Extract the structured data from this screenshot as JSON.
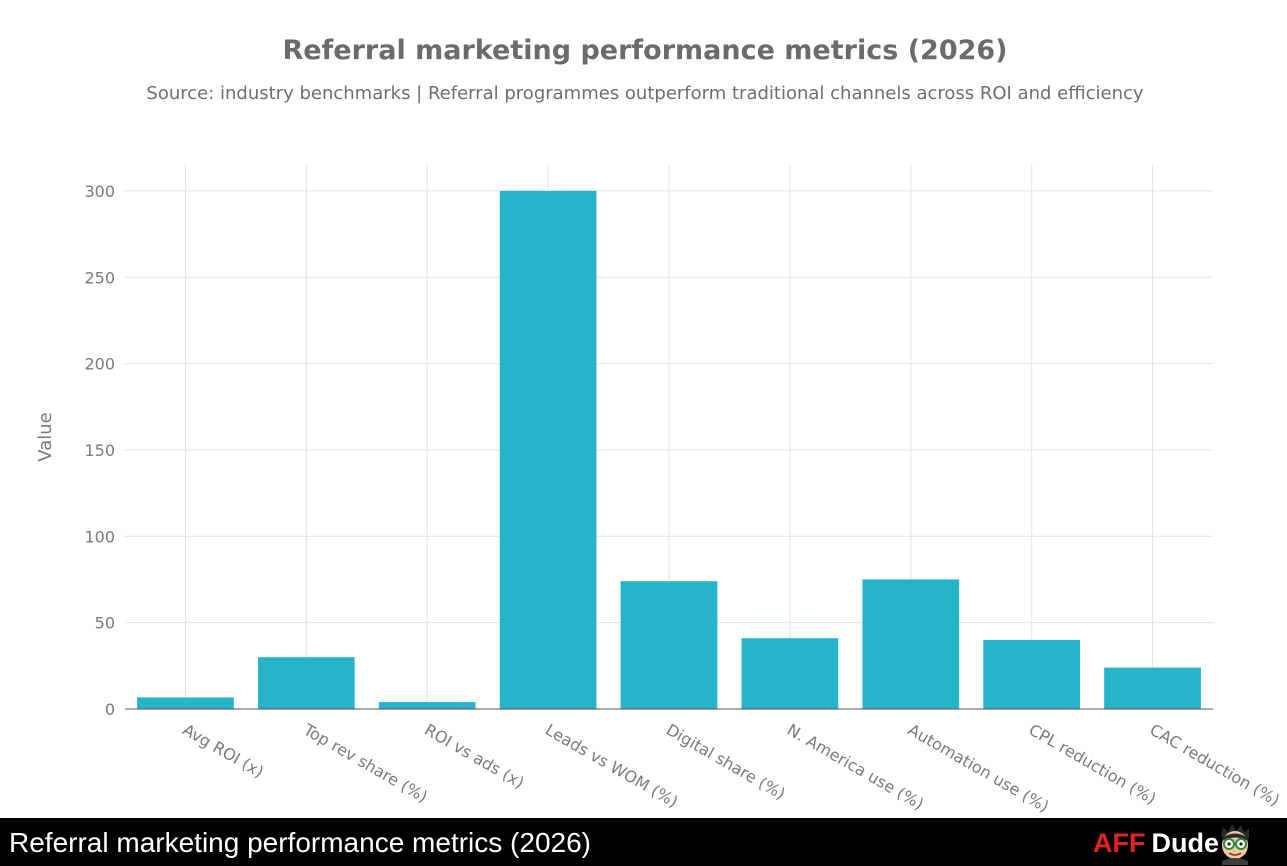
{
  "chart_data": {
    "type": "bar",
    "title": "Referral marketing performance metrics (2026)",
    "subtitle": "Source: industry benchmarks | Referral programmes outperform traditional channels across ROI and efficiency",
    "xlabel": "",
    "ylabel": "Value",
    "ylim": [
      0,
      315
    ],
    "yticks": [
      0,
      50,
      100,
      150,
      200,
      250,
      300
    ],
    "grid": true,
    "categories": [
      "Avg ROI (x)",
      "Top rev share (%)",
      "ROI vs ads (x)",
      "Leads vs WOM (%)",
      "Digital share (%)",
      "N. America use (%)",
      "Automation use (%)",
      "CPL reduction (%)",
      "CAC reduction (%)"
    ],
    "values": [
      6.7,
      30,
      4,
      300,
      74,
      41,
      75,
      40,
      24
    ],
    "bar_color": "#26b5c8"
  },
  "footer": {
    "title": "Referral marketing performance metrics (2026)",
    "brand_aff": "AFF",
    "brand_dude": "Dude",
    "brand_aff_color": "#e32222",
    "mascot_icon": "cartoon-man-glasses-icon"
  }
}
